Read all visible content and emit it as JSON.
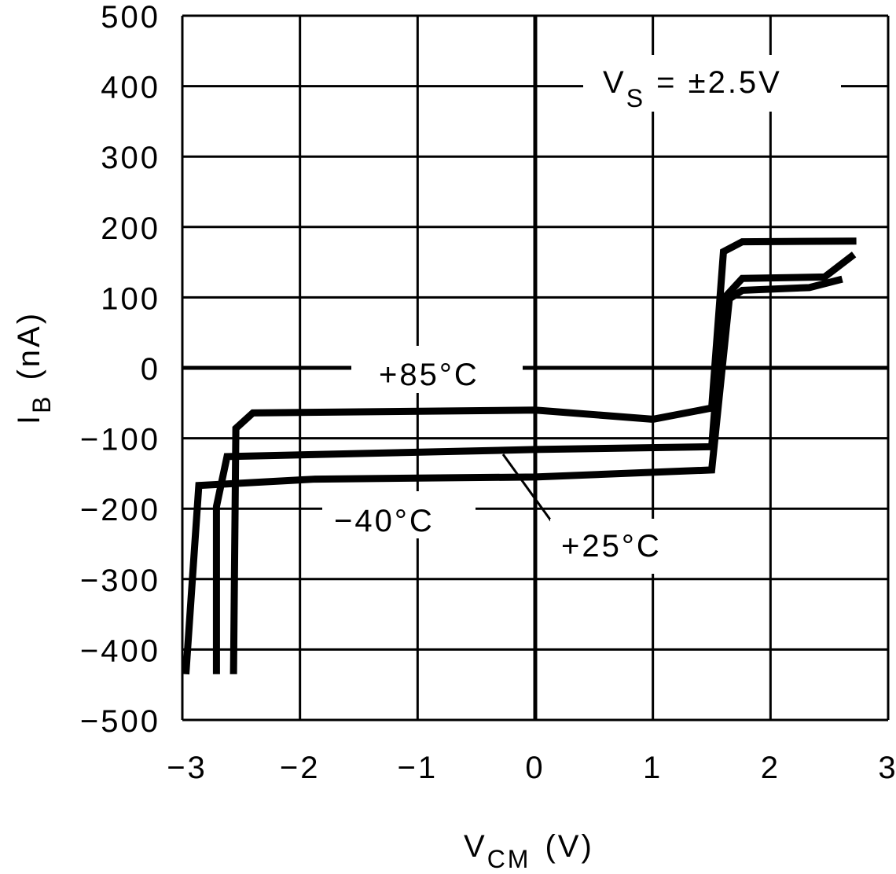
{
  "chart_data": {
    "type": "line",
    "title": "",
    "xlabel": "V",
    "xlabel_sub": "CM",
    "xlabel_unit": "(V)",
    "ylabel": "I",
    "ylabel_sub": "B",
    "ylabel_unit": "(nA)",
    "xlim": [
      -3,
      3
    ],
    "ylim": [
      -500,
      500
    ],
    "grid": true,
    "xticks": [
      -3,
      -2,
      -1,
      0,
      1,
      2,
      3
    ],
    "xtick_labels": [
      "−3",
      "−2",
      "−1",
      "0",
      "1",
      "2",
      "3"
    ],
    "yticks": [
      500,
      400,
      300,
      200,
      100,
      0,
      -100,
      -200,
      -300,
      -400,
      -500
    ],
    "ytick_labels": [
      "500",
      "400",
      "300",
      "200",
      "100",
      "0",
      "−100",
      "−200",
      "−300",
      "−400",
      "−500"
    ],
    "annotation": {
      "main": "V",
      "sub": "S",
      "rest": " = ±2.5V"
    },
    "series": [
      {
        "name": "+85°C",
        "x": [
          -2.565,
          -2.545,
          -2.4,
          0,
          1.0,
          1.5,
          1.6,
          1.76,
          2.73
        ],
        "y": [
          -435,
          -86,
          -64,
          -60,
          -73,
          -57,
          165,
          179,
          180
        ]
      },
      {
        "name": "+25°C",
        "x": [
          -2.71,
          -2.71,
          -2.62,
          0,
          1.5,
          1.6,
          1.76,
          2.46,
          2.71
        ],
        "y": [
          -435,
          -197,
          -126,
          -116,
          -112,
          98,
          127,
          129,
          161
        ]
      },
      {
        "name": "−40°C",
        "x": [
          -2.97,
          -2.86,
          -1.87,
          0,
          1.5,
          1.65,
          1.76,
          2.33,
          2.61
        ],
        "y": [
          -435,
          -167,
          -158,
          -155,
          -145,
          98,
          110,
          114,
          126
        ]
      }
    ]
  }
}
